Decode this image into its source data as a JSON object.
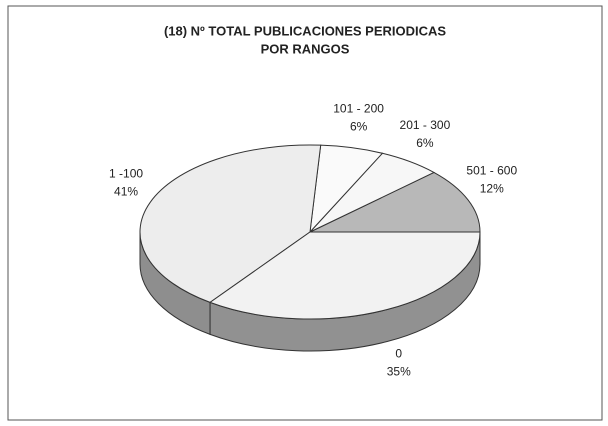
{
  "chart_data": {
    "type": "pie",
    "title": [
      "(18) Nº TOTAL PUBLICACIONES PERIODICAS",
      "POR RANGOS"
    ],
    "categories": [
      "501 - 600",
      "201 - 300",
      "101 - 200",
      "1 -100",
      "0"
    ],
    "values": [
      12,
      6,
      6,
      41,
      35
    ],
    "value_labels": [
      "12%",
      "6%",
      "6%",
      "41%",
      "35%"
    ],
    "colors": [
      "#b8b8b8",
      "#f7f7f7",
      "#fafafa",
      "#ededed",
      "#f2f2f2"
    ]
  }
}
